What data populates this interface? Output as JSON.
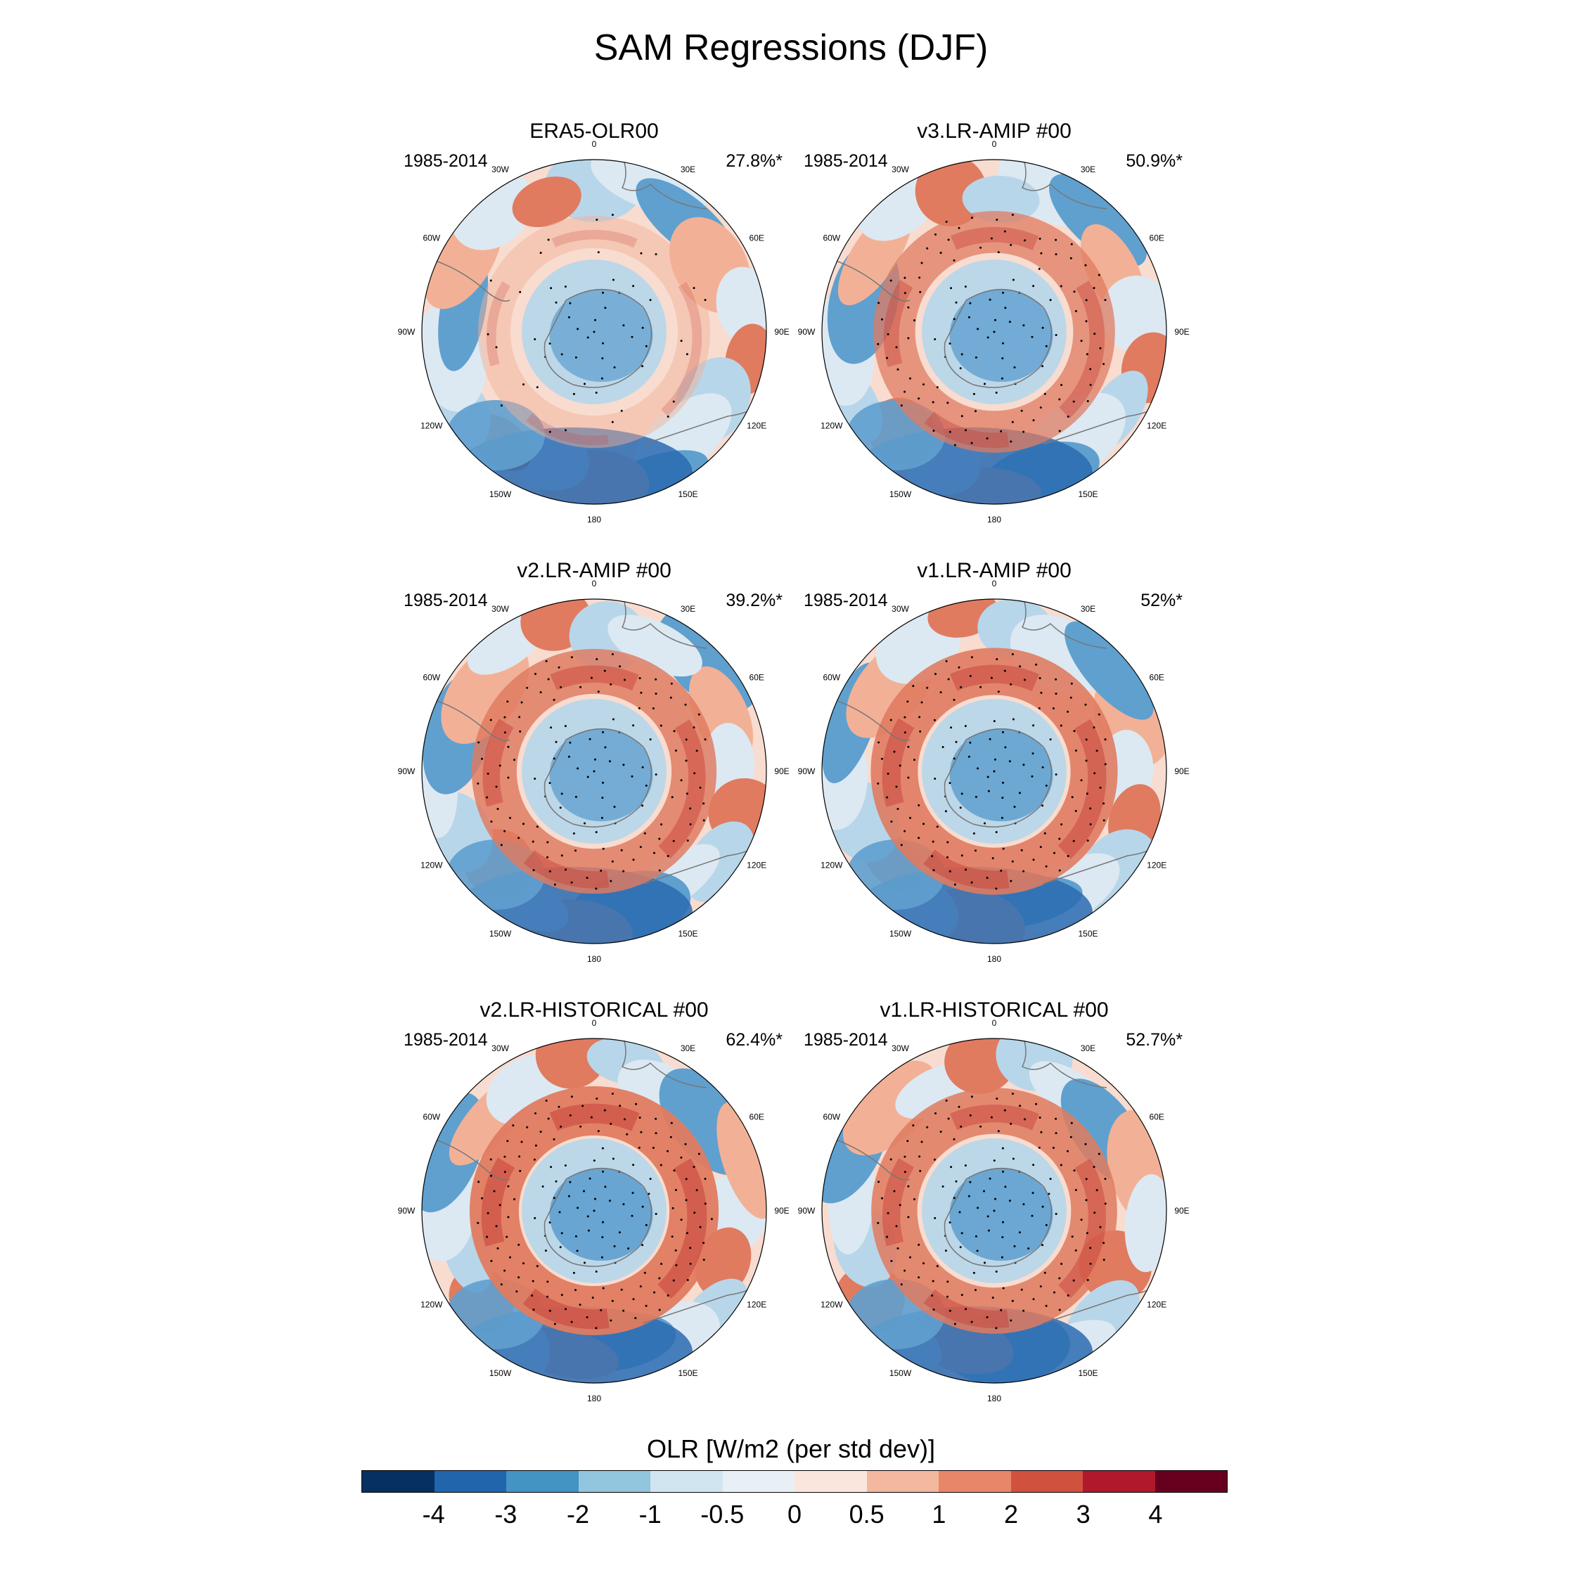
{
  "figure": {
    "title": "SAM Regressions (DJF)"
  },
  "lon_labels": {
    "top": "0",
    "bottom": "180",
    "left_upper2": "30W",
    "left_upper1": "60W",
    "left_mid": "90W",
    "left_lower1": "120W",
    "left_lower2": "150W",
    "right_upper2": "30E",
    "right_upper1": "60E",
    "right_mid": "90E",
    "right_lower1": "120E",
    "right_lower2": "150E"
  },
  "panels": [
    {
      "title": "ERA5-OLR00",
      "period": "1985-2014",
      "explained_variance": "27.8%*"
    },
    {
      "title": "v3.LR-AMIP  #00",
      "period": "1985-2014",
      "explained_variance": "50.9%*"
    },
    {
      "title": "v2.LR-AMIP  #00",
      "period": "1985-2014",
      "explained_variance": "39.2%*"
    },
    {
      "title": "v1.LR-AMIP  #00",
      "period": "1985-2014",
      "explained_variance": "52%*"
    },
    {
      "title": "v2.LR-HISTORICAL  #00",
      "period": "1985-2014",
      "explained_variance": "62.4%*"
    },
    {
      "title": "v1.LR-HISTORICAL  #00",
      "period": "1985-2014",
      "explained_variance": "52.7%*"
    }
  ],
  "colorbar": {
    "title": "OLR [W/m2 (per std dev)]",
    "colors": [
      "#053061",
      "#2166ac",
      "#4393c3",
      "#92c5de",
      "#d1e5f0",
      "#e8f0f5",
      "#fbe6dd",
      "#f4b89e",
      "#e8866a",
      "#d1513f",
      "#b2182b",
      "#67001f"
    ],
    "tick_labels": [
      "-4",
      "-3",
      "-2",
      "-1",
      "-0.5",
      "0",
      "0.5",
      "1",
      "2",
      "3",
      "4"
    ]
  },
  "palette": {
    "deep_blue": "#2a6bb1",
    "blue": "#5fa0cf",
    "light_blue": "#b8d6e9",
    "pale_blue": "#dce9f2",
    "pale_red": "#f8dcd0",
    "light_red": "#f2b196",
    "red": "#e07b60",
    "dark_red": "#c7423a",
    "coast": "#777777",
    "stipple": "#000000"
  }
}
